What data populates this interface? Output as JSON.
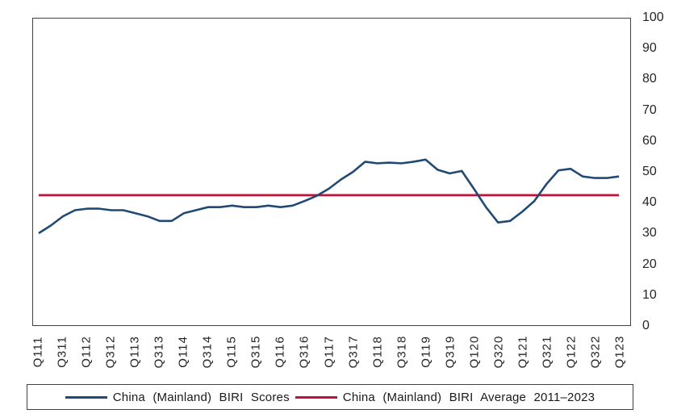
{
  "chart": {
    "legend": {
      "scores_label": "China (Mainland) BIRI Scores",
      "average_label": "China (Mainland) BIRI Average 2011–2023"
    },
    "colors": {
      "scores_line": "#204a73",
      "average_line": "#c41237",
      "frame": "#404040",
      "tick_text": "#262626"
    }
  },
  "chart_data": {
    "type": "line",
    "title": "",
    "xlabel": "",
    "ylabel": "",
    "grid": false,
    "legend_position": "bottom",
    "x": [
      "Q111",
      "Q211",
      "Q311",
      "Q411",
      "Q112",
      "Q212",
      "Q312",
      "Q412",
      "Q113",
      "Q213",
      "Q313",
      "Q413",
      "Q114",
      "Q214",
      "Q314",
      "Q414",
      "Q115",
      "Q215",
      "Q315",
      "Q415",
      "Q116",
      "Q216",
      "Q316",
      "Q416",
      "Q117",
      "Q217",
      "Q317",
      "Q417",
      "Q118",
      "Q218",
      "Q318",
      "Q418",
      "Q119",
      "Q219",
      "Q319",
      "Q419",
      "Q120",
      "Q220",
      "Q320",
      "Q420",
      "Q121",
      "Q221",
      "Q321",
      "Q421",
      "Q122",
      "Q222",
      "Q322",
      "Q422",
      "Q123"
    ],
    "x_tick_every": 2,
    "x_tick_labels_visible": [
      "Q111",
      "Q311",
      "Q112",
      "Q312",
      "Q113",
      "Q313",
      "Q114",
      "Q314",
      "Q115",
      "Q315",
      "Q116",
      "Q316",
      "Q117",
      "Q317",
      "Q118",
      "Q318",
      "Q119",
      "Q319",
      "Q120",
      "Q320",
      "Q121",
      "Q321",
      "Q122",
      "Q322",
      "Q123"
    ],
    "series": [
      {
        "name": "China (Mainland) BIRI Scores",
        "color": "#204a73",
        "values": [
          30,
          32.5,
          35.5,
          37.5,
          38,
          38,
          37.5,
          37.5,
          36.5,
          35.5,
          34,
          34,
          36.5,
          37.5,
          38.5,
          38.5,
          39,
          38.5,
          38.5,
          39,
          38.5,
          39,
          40.5,
          42.2,
          44.5,
          47.5,
          50,
          53.3,
          52.8,
          53,
          52.8,
          53.3,
          54,
          50.7,
          49.5,
          50.3,
          44.5,
          38.5,
          33.5,
          34,
          37,
          40.5,
          46,
          50.5,
          51,
          48.5,
          48,
          48,
          48.5
        ]
      }
    ],
    "average_line": {
      "name": "China (Mainland) BIRI Average 2011–2023",
      "color": "#c41237",
      "value": 42.4
    },
    "y_axis": {
      "min": 0,
      "max": 100,
      "step": 10,
      "side": "right",
      "tick_labels": [
        "100",
        "90",
        "80",
        "70",
        "60",
        "50",
        "40",
        "30",
        "20",
        "10",
        "0"
      ]
    }
  }
}
